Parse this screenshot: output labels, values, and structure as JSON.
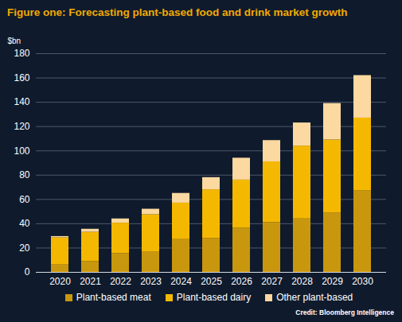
{
  "chart_data": {
    "type": "bar",
    "stacked": true,
    "title": "Figure one: Forecasting plant-based food and drink market growth",
    "y_label": "$bn",
    "caption": "Credit: Bloomberg Intelligence",
    "categories": [
      "2020",
      "2021",
      "2022",
      "2023",
      "2024",
      "2025",
      "2026",
      "2027",
      "2028",
      "2029",
      "2030"
    ],
    "series": [
      {
        "name": "Plant-based meat",
        "color": "#c9970e",
        "values": [
          6.5,
          9,
          15.5,
          17,
          27,
          28,
          36.5,
          41,
          44,
          49,
          67
        ]
      },
      {
        "name": "Plant-based dairy",
        "color": "#f5b800",
        "values": [
          22,
          24,
          25,
          30.5,
          30,
          40,
          39.5,
          50,
          60,
          60,
          60
        ]
      },
      {
        "name": "Other plant-based",
        "color": "#fcd9a0",
        "values": [
          1,
          2.5,
          3.5,
          4.5,
          8,
          10,
          18,
          17.5,
          19,
          30,
          35
        ]
      }
    ],
    "ylim": [
      0,
      180
    ],
    "yticks": [
      0,
      20,
      40,
      60,
      80,
      100,
      120,
      140,
      160,
      180
    ],
    "grid": true,
    "legend": "bottom"
  }
}
